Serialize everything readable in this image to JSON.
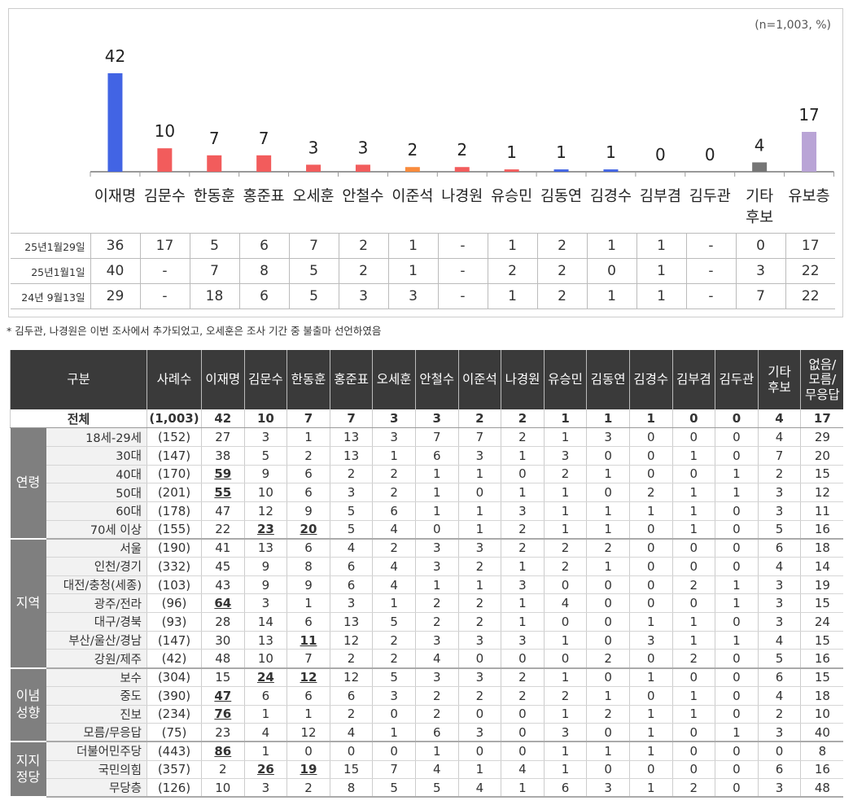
{
  "chart_data": {
    "type": "bar",
    "note": "(n=1,003, %)",
    "categories": [
      "이재명",
      "김문수",
      "한동훈",
      "홍준표",
      "오세훈",
      "안철수",
      "이준석",
      "나경원",
      "유승민",
      "김동연",
      "김경수",
      "김부겸",
      "김두관",
      "기타\n후보",
      "유보층"
    ],
    "values": [
      42,
      10,
      7,
      7,
      3,
      3,
      2,
      2,
      1,
      1,
      1,
      0,
      0,
      4,
      17
    ],
    "colors": [
      "#4264e4",
      "#f25c5c",
      "#f25c5c",
      "#f25c5c",
      "#f25c5c",
      "#f25c5c",
      "#f98b3c",
      "#f25c5c",
      "#f25c5c",
      "#4264e4",
      "#4264e4",
      "#f25c5c",
      "#f25c5c",
      "#767676",
      "#b9a4d6"
    ],
    "ylim": [
      0,
      45
    ],
    "grid": false
  },
  "previous": [
    {
      "label": "25년1월29일",
      "values": [
        "36",
        "17",
        "5",
        "6",
        "7",
        "2",
        "1",
        "-",
        "1",
        "2",
        "1",
        "1",
        "-",
        "0",
        "17"
      ]
    },
    {
      "label": "25년1월1일",
      "values": [
        "40",
        "-",
        "7",
        "8",
        "5",
        "2",
        "1",
        "-",
        "2",
        "2",
        "0",
        "1",
        "-",
        "3",
        "22"
      ]
    },
    {
      "label": "24년 9월13일",
      "values": [
        "29",
        "-",
        "18",
        "6",
        "5",
        "3",
        "3",
        "-",
        "1",
        "2",
        "1",
        "1",
        "-",
        "7",
        "22"
      ]
    }
  ],
  "footnote": "* 김두관, 나경원은 이번 조사에서 추가되었고, 오세훈은 조사 기간 중 불출마 선언하였음",
  "table": {
    "headers": [
      "구분",
      "사례수",
      "이재명",
      "김문수",
      "한동훈",
      "홍준표",
      "오세훈",
      "안철수",
      "이준석",
      "나경원",
      "유승민",
      "김동연",
      "김경수",
      "김부겸",
      "김두관",
      "기타\n후보",
      "없음/\n모름/\n무응답"
    ],
    "total": {
      "label": "전체",
      "n": "(1,003)",
      "values": [
        "42",
        "10",
        "7",
        "7",
        "3",
        "3",
        "2",
        "2",
        "1",
        "1",
        "1",
        "0",
        "0",
        "4",
        "17"
      ]
    },
    "groups": [
      {
        "name": "연령",
        "rows": [
          {
            "label": "18세-29세",
            "n": "(152)",
            "values": [
              "27",
              "3",
              "1",
              "13",
              "3",
              "7",
              "7",
              "2",
              "1",
              "3",
              "0",
              "0",
              "0",
              "4",
              "29"
            ],
            "underlined": []
          },
          {
            "label": "30대",
            "n": "(147)",
            "values": [
              "38",
              "5",
              "2",
              "13",
              "1",
              "6",
              "3",
              "1",
              "3",
              "0",
              "0",
              "1",
              "0",
              "7",
              "20"
            ],
            "underlined": []
          },
          {
            "label": "40대",
            "n": "(170)",
            "values": [
              "59",
              "9",
              "6",
              "2",
              "2",
              "1",
              "1",
              "0",
              "2",
              "1",
              "0",
              "0",
              "1",
              "2",
              "15"
            ],
            "underlined": [
              0
            ]
          },
          {
            "label": "50대",
            "n": "(201)",
            "values": [
              "55",
              "10",
              "6",
              "3",
              "2",
              "1",
              "0",
              "1",
              "1",
              "0",
              "2",
              "1",
              "1",
              "3",
              "12"
            ],
            "underlined": [
              0
            ]
          },
          {
            "label": "60대",
            "n": "(178)",
            "values": [
              "47",
              "12",
              "9",
              "5",
              "6",
              "1",
              "1",
              "3",
              "1",
              "1",
              "1",
              "1",
              "0",
              "3",
              "11"
            ],
            "underlined": []
          },
          {
            "label": "70세 이상",
            "n": "(155)",
            "values": [
              "22",
              "23",
              "20",
              "5",
              "4",
              "0",
              "1",
              "2",
              "1",
              "1",
              "0",
              "1",
              "0",
              "5",
              "16"
            ],
            "underlined": [
              1,
              2
            ]
          }
        ]
      },
      {
        "name": "지역",
        "rows": [
          {
            "label": "서울",
            "n": "(190)",
            "values": [
              "41",
              "13",
              "6",
              "4",
              "2",
              "3",
              "3",
              "2",
              "2",
              "2",
              "0",
              "0",
              "0",
              "6",
              "18"
            ],
            "underlined": []
          },
          {
            "label": "인천/경기",
            "n": "(332)",
            "values": [
              "45",
              "9",
              "8",
              "6",
              "4",
              "3",
              "2",
              "1",
              "2",
              "1",
              "0",
              "0",
              "0",
              "4",
              "14"
            ],
            "underlined": []
          },
          {
            "label": "대전/충청(세종)",
            "n": "(103)",
            "values": [
              "43",
              "9",
              "9",
              "6",
              "4",
              "1",
              "1",
              "3",
              "0",
              "0",
              "0",
              "2",
              "1",
              "3",
              "19"
            ],
            "underlined": []
          },
          {
            "label": "광주/전라",
            "n": "(96)",
            "values": [
              "64",
              "3",
              "1",
              "3",
              "1",
              "2",
              "2",
              "1",
              "4",
              "0",
              "0",
              "0",
              "1",
              "3",
              "15"
            ],
            "underlined": [
              0
            ]
          },
          {
            "label": "대구/경북",
            "n": "(93)",
            "values": [
              "28",
              "14",
              "6",
              "13",
              "5",
              "2",
              "2",
              "1",
              "0",
              "0",
              "1",
              "1",
              "0",
              "3",
              "24"
            ],
            "underlined": []
          },
          {
            "label": "부산/울산/경남",
            "n": "(147)",
            "values": [
              "30",
              "13",
              "11",
              "12",
              "2",
              "3",
              "3",
              "3",
              "1",
              "0",
              "3",
              "1",
              "1",
              "4",
              "15"
            ],
            "underlined": [
              2
            ]
          },
          {
            "label": "강원/제주",
            "n": "(42)",
            "values": [
              "48",
              "10",
              "7",
              "2",
              "2",
              "4",
              "0",
              "0",
              "0",
              "2",
              "0",
              "2",
              "0",
              "5",
              "16"
            ],
            "underlined": []
          }
        ]
      },
      {
        "name": "이념\n성향",
        "rows": [
          {
            "label": "보수",
            "n": "(304)",
            "values": [
              "15",
              "24",
              "12",
              "12",
              "5",
              "3",
              "3",
              "2",
              "1",
              "0",
              "1",
              "0",
              "0",
              "6",
              "15"
            ],
            "underlined": [
              1,
              2
            ]
          },
          {
            "label": "중도",
            "n": "(390)",
            "values": [
              "47",
              "6",
              "6",
              "6",
              "3",
              "2",
              "2",
              "2",
              "2",
              "1",
              "0",
              "1",
              "0",
              "4",
              "18"
            ],
            "underlined": [
              0
            ]
          },
          {
            "label": "진보",
            "n": "(234)",
            "values": [
              "76",
              "1",
              "1",
              "2",
              "0",
              "2",
              "0",
              "0",
              "1",
              "2",
              "1",
              "1",
              "0",
              "2",
              "10"
            ],
            "underlined": [
              0
            ]
          },
          {
            "label": "모름/무응답",
            "n": "(75)",
            "values": [
              "23",
              "4",
              "12",
              "4",
              "1",
              "6",
              "3",
              "0",
              "3",
              "0",
              "1",
              "0",
              "1",
              "3",
              "40"
            ],
            "underlined": []
          }
        ]
      },
      {
        "name": "지지\n정당",
        "rows": [
          {
            "label": "더불어민주당",
            "n": "(443)",
            "values": [
              "86",
              "1",
              "0",
              "0",
              "0",
              "1",
              "0",
              "0",
              "1",
              "1",
              "1",
              "0",
              "0",
              "0",
              "8"
            ],
            "underlined": [
              0
            ]
          },
          {
            "label": "국민의힘",
            "n": "(357)",
            "values": [
              "2",
              "26",
              "19",
              "15",
              "7",
              "4",
              "1",
              "4",
              "1",
              "0",
              "0",
              "0",
              "0",
              "6",
              "16"
            ],
            "underlined": [
              1,
              2
            ]
          },
          {
            "label": "무당층",
            "n": "(126)",
            "values": [
              "10",
              "3",
              "2",
              "8",
              "5",
              "5",
              "4",
              "1",
              "6",
              "3",
              "1",
              "2",
              "0",
              "3",
              "48"
            ],
            "underlined": []
          }
        ]
      }
    ]
  }
}
